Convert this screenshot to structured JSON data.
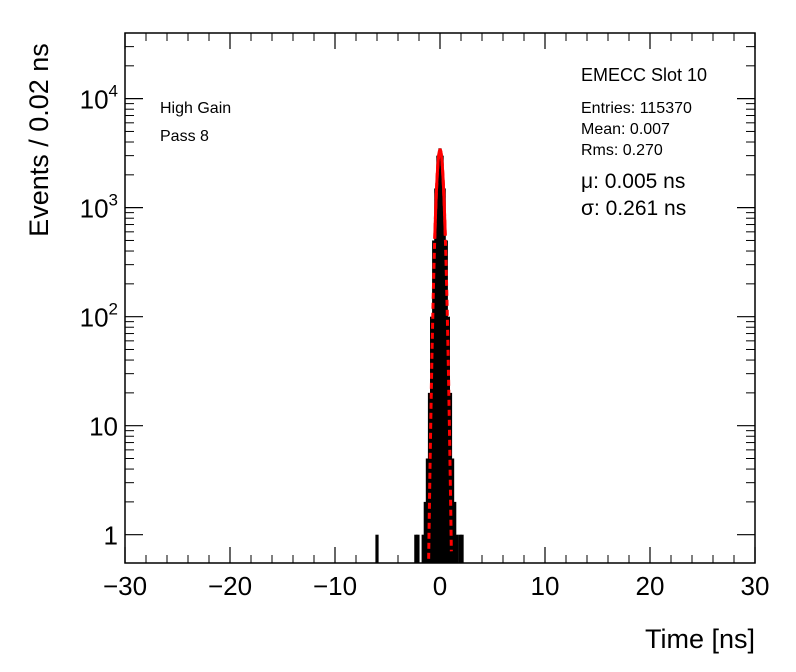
{
  "chart_data": {
    "type": "histogram",
    "xlabel": "Time [ns]",
    "ylabel": "Events / 0.02 ns",
    "xlim": [
      -30,
      30
    ],
    "ylim": [
      0.55,
      40000
    ],
    "y_scale": "log",
    "x_ticks": [
      -30,
      -20,
      -10,
      0,
      10,
      20,
      30
    ],
    "x_tick_labels": [
      "−30",
      "−20",
      "−10",
      "0",
      "10",
      "20",
      "30"
    ],
    "y_ticks": [
      {
        "value": 1,
        "base": "1",
        "exp": ""
      },
      {
        "value": 10,
        "base": "10",
        "exp": ""
      },
      {
        "value": 100,
        "base": "10",
        "exp": "2"
      },
      {
        "value": 1000,
        "base": "10",
        "exp": "3"
      },
      {
        "value": 10000,
        "base": "10",
        "exp": "4"
      }
    ],
    "histogram": [
      {
        "x": -6.0,
        "y": 1
      },
      {
        "x": -2.3,
        "y": 1
      },
      {
        "x": -2.1,
        "y": 1
      },
      {
        "x": -1.6,
        "y": 1
      },
      {
        "x": -1.4,
        "y": 2
      },
      {
        "x": -1.2,
        "y": 5
      },
      {
        "x": -1.0,
        "y": 20
      },
      {
        "x": -0.8,
        "y": 100
      },
      {
        "x": -0.6,
        "y": 500
      },
      {
        "x": -0.4,
        "y": 1500
      },
      {
        "x": -0.2,
        "y": 3000
      },
      {
        "x": 0.0,
        "y": 3500
      },
      {
        "x": 0.2,
        "y": 3000
      },
      {
        "x": 0.4,
        "y": 1500
      },
      {
        "x": 0.6,
        "y": 500
      },
      {
        "x": 0.8,
        "y": 100
      },
      {
        "x": 1.0,
        "y": 20
      },
      {
        "x": 1.2,
        "y": 5
      },
      {
        "x": 1.4,
        "y": 2
      },
      {
        "x": 1.6,
        "y": 1
      },
      {
        "x": 1.9,
        "y": 1
      },
      {
        "x": 2.1,
        "y": 1
      }
    ],
    "fit": {
      "function": "gaussian",
      "amplitude": 3400,
      "mean": 0.005,
      "sigma": 0.261,
      "range": [
        -2.6,
        2.6
      ],
      "color": "#ff0000"
    },
    "annotations": {
      "gain": "High Gain",
      "pass": "Pass 8",
      "slot": "EMECC Slot 10",
      "entries": "Entries: 115370",
      "mean": "Mean: 0.007",
      "rms": "Rms: 0.270",
      "mu": "μ: 0.005 ns",
      "sigma": "σ: 0.261 ns"
    },
    "grid": false,
    "legend": "none"
  }
}
